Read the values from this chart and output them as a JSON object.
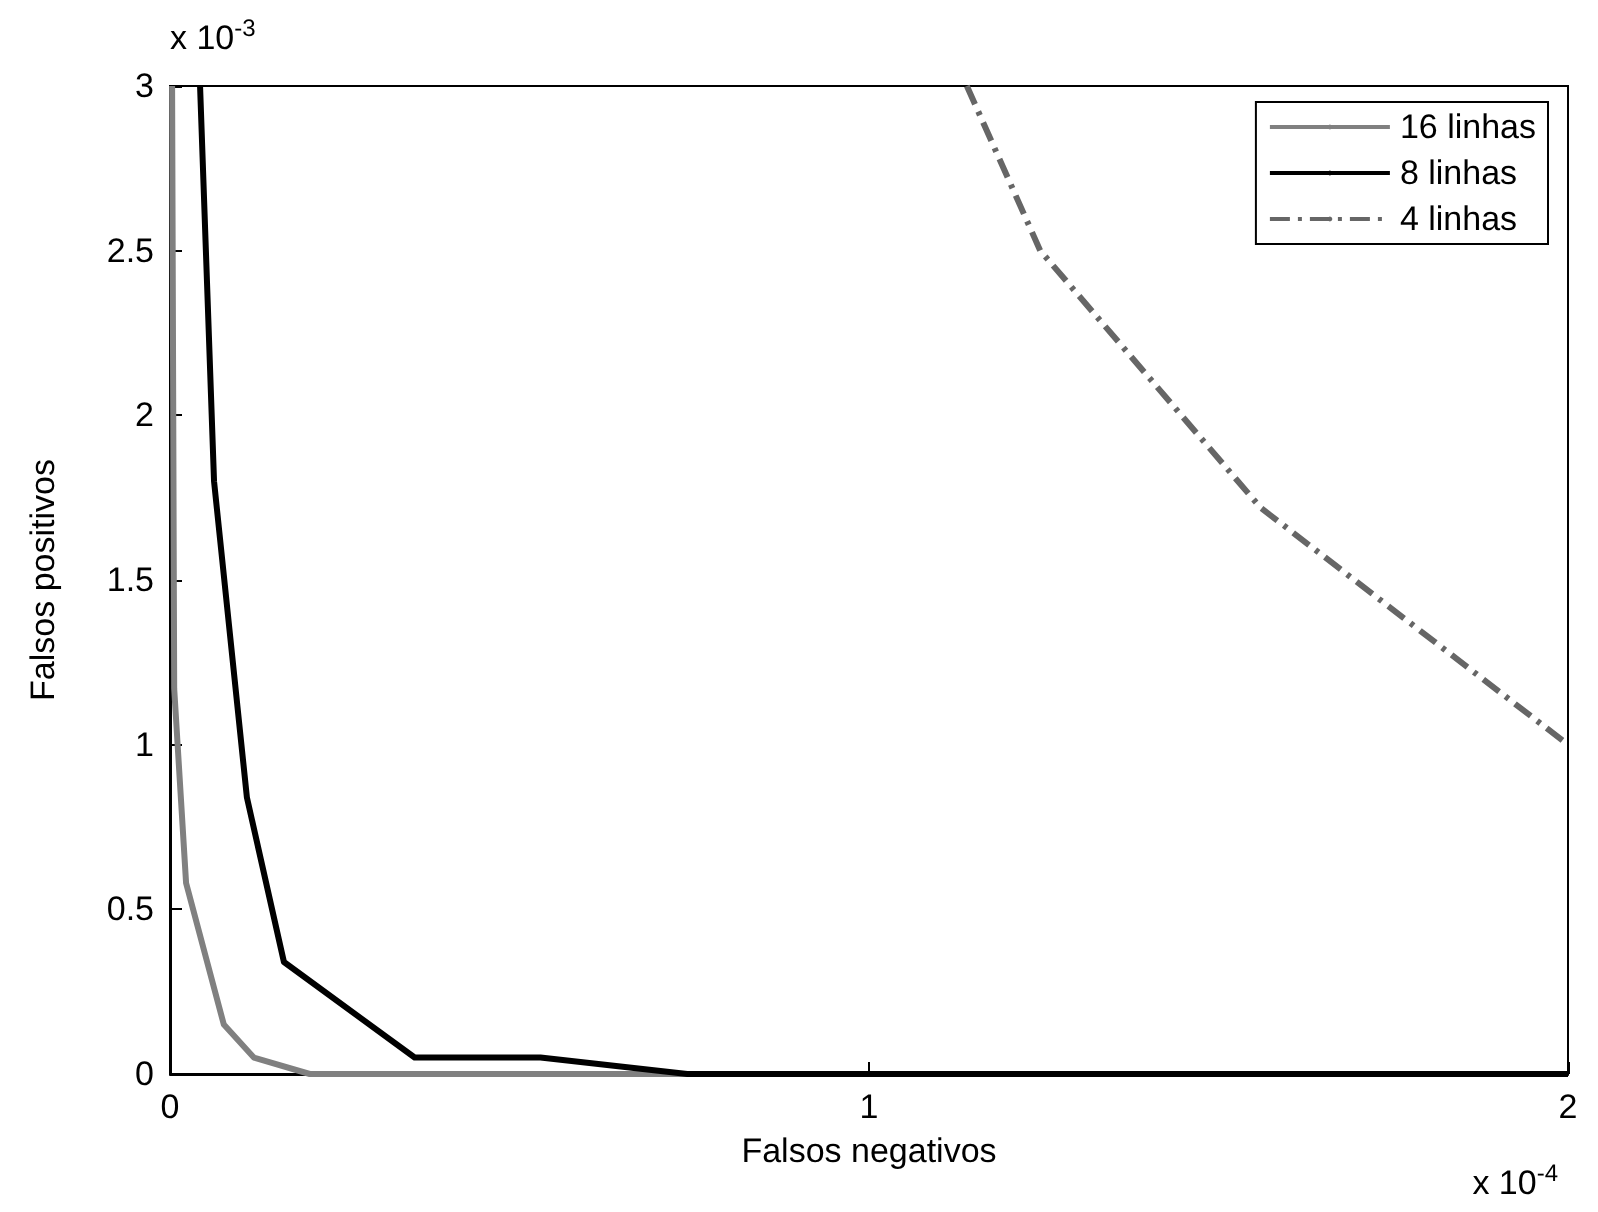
{
  "chart_data": {
    "type": "line",
    "xlabel": "Falsos negativos",
    "ylabel": "Falsos positivos",
    "xlim": [
      0,
      2
    ],
    "xticks": [
      0,
      1,
      2
    ],
    "ylim": [
      0,
      3
    ],
    "yticks": [
      0,
      0.5,
      1,
      1.5,
      2,
      2.5,
      3
    ],
    "grid": false,
    "legend": "top right",
    "marker": "none",
    "annotations": [
      "x 10$^{-3}$",
      "x 10$^{-4}$"
    ],
    "series": [
      {
        "name": "16 linhas",
        "color": "#808080",
        "line_style": "solid",
        "x": [
          0.003,
          0.006,
          0.023,
          0.077,
          0.12,
          0.2,
          2
        ],
        "values": [
          3,
          1.17,
          0.58,
          0.15,
          0.05,
          0,
          0
        ]
      },
      {
        "name": "8 linhas",
        "color": "#000000",
        "line_style": "solid",
        "x": [
          0.043,
          0.063,
          0.11,
          0.163,
          0.35,
          0.53,
          0.74,
          2
        ],
        "values": [
          3,
          1.8,
          0.84,
          0.34,
          0.05,
          0.05,
          0,
          0
        ]
      },
      {
        "name": "4 linhas",
        "color": "#666666",
        "line_style": "dashed",
        "x": [
          1.14,
          1.245,
          1.56,
          2
        ],
        "values": [
          3,
          2.5,
          1.72,
          1.0
        ]
      }
    ]
  }
}
